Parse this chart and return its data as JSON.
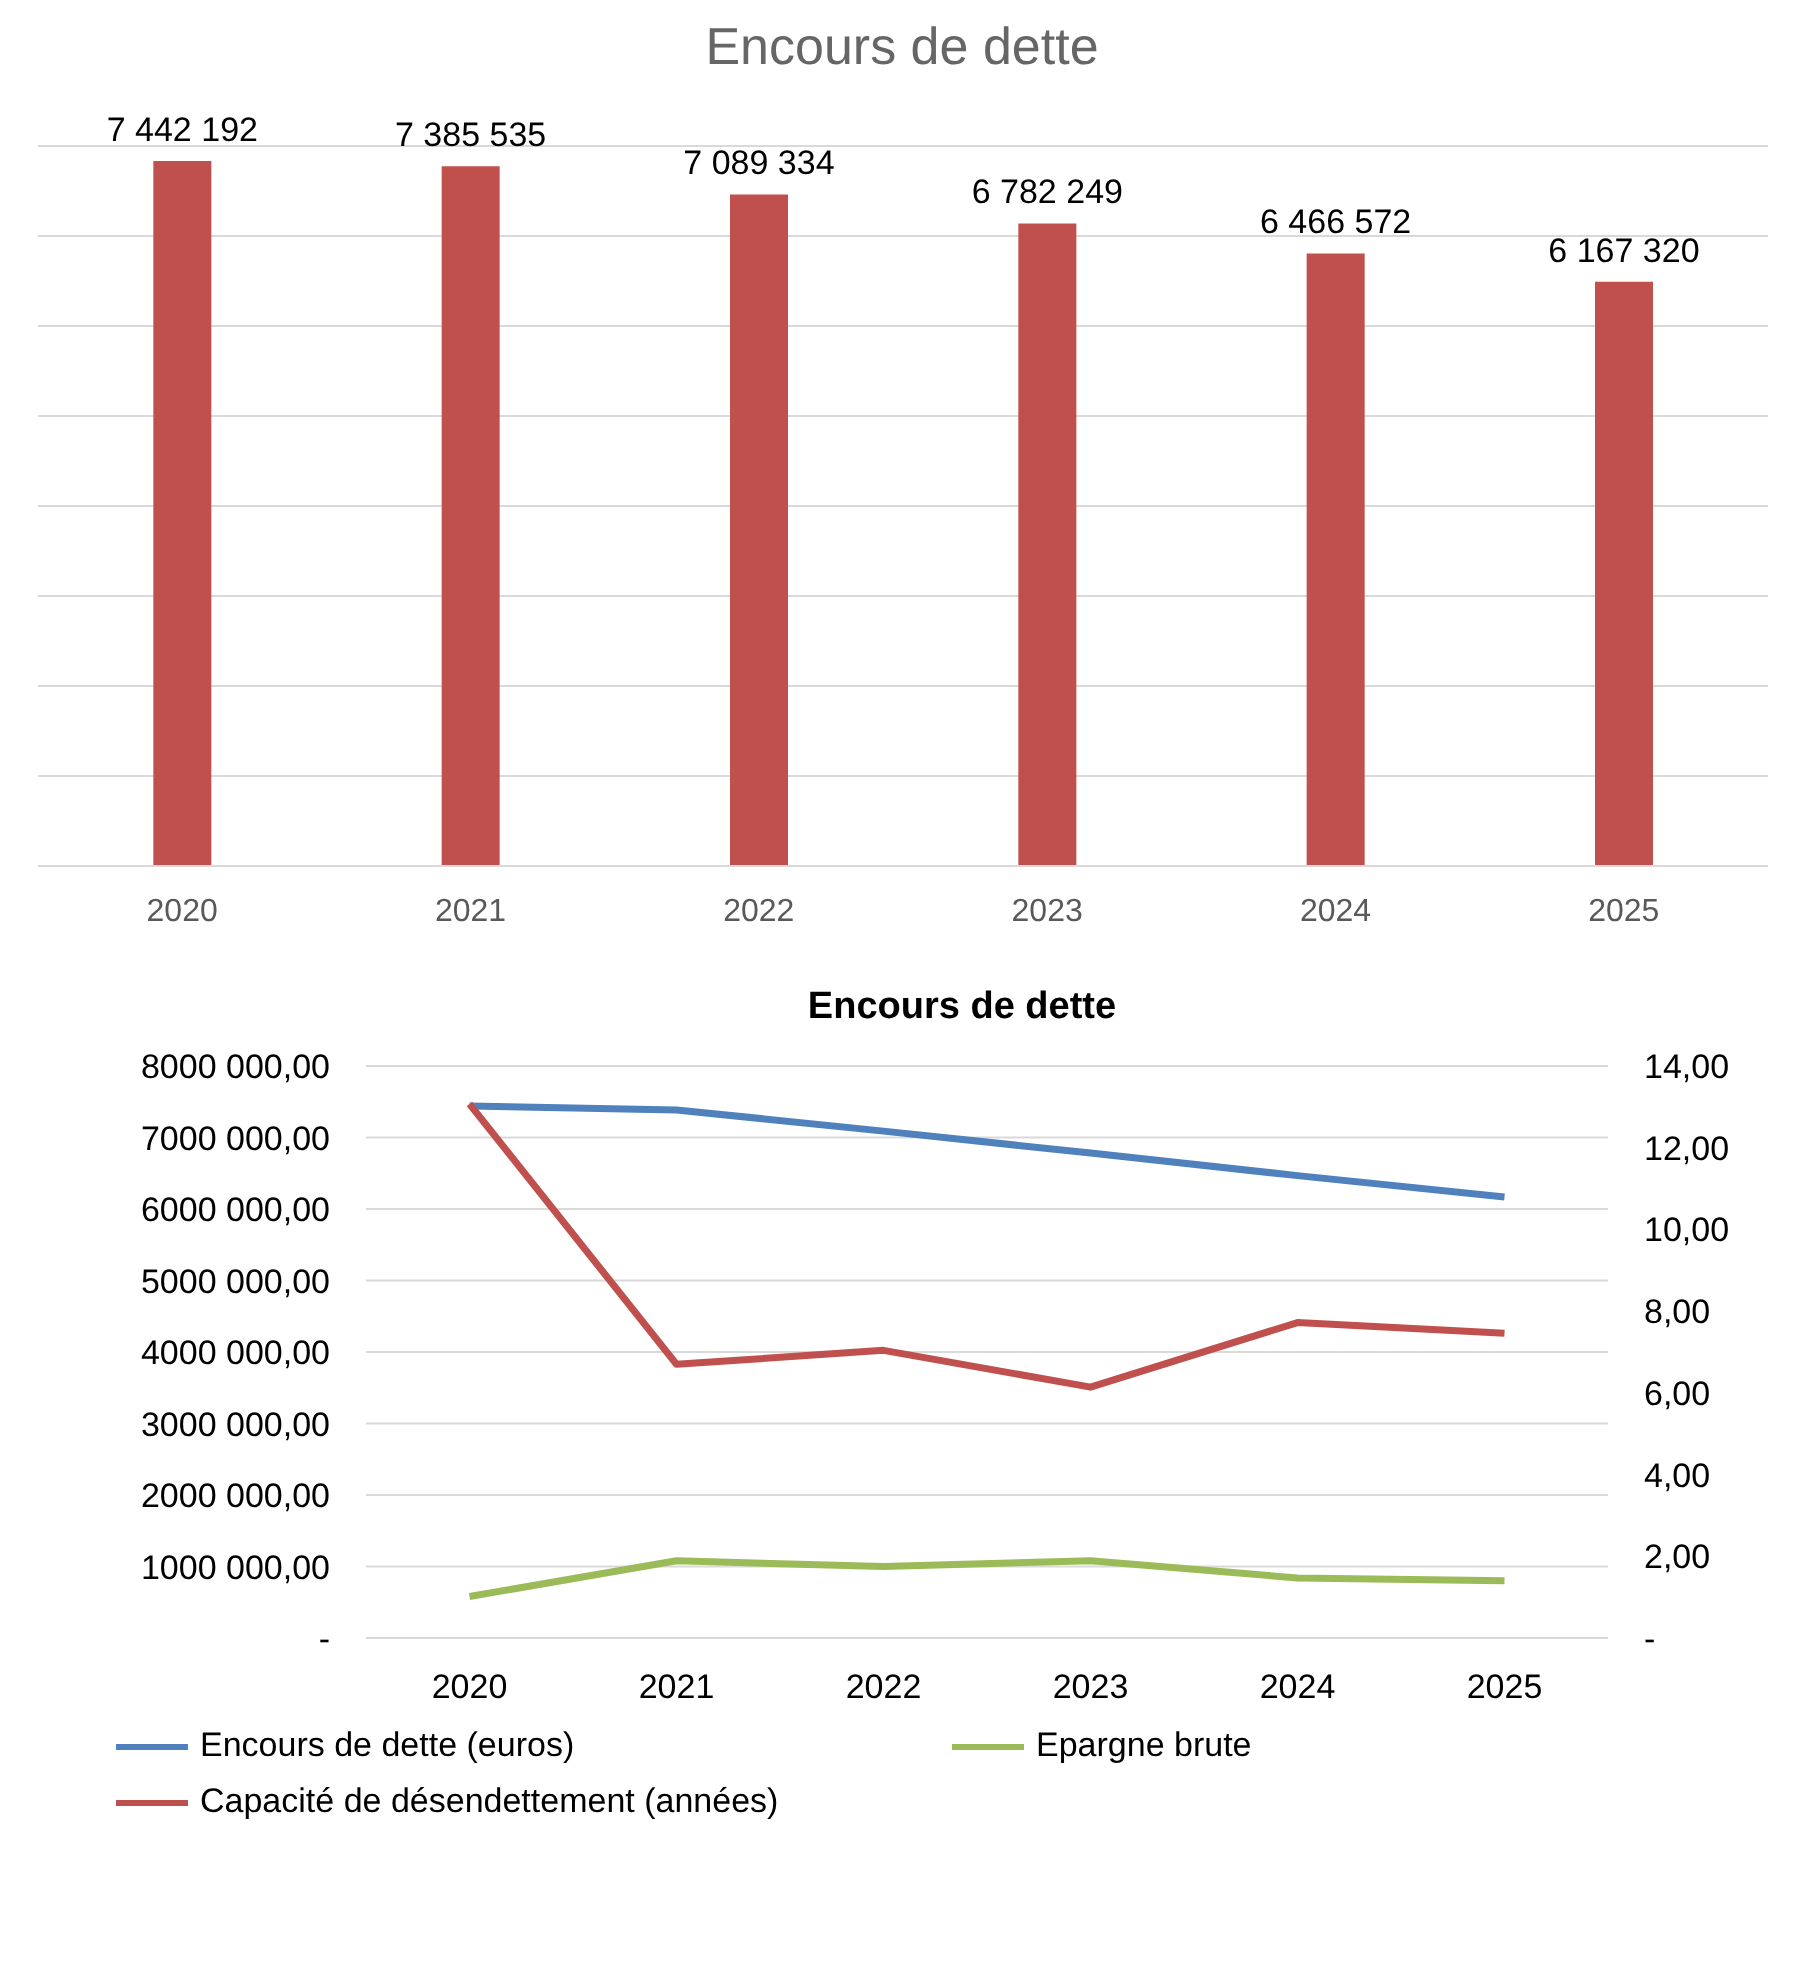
{
  "chart_data": [
    {
      "type": "bar",
      "title": "Encours de dette",
      "categories": [
        "2020",
        "2021",
        "2022",
        "2023",
        "2024",
        "2025"
      ],
      "values": [
        7442192,
        7385535,
        7089334,
        6782249,
        6466572,
        6167320
      ],
      "value_labels": [
        "7 442 192",
        "7 385 535",
        "7 089 334",
        "6 782 249",
        "6 466 572",
        "6 167 320"
      ],
      "color": "#c0504d",
      "tick_labels": "x",
      "grid": "y"
    },
    {
      "type": "line",
      "title": "Encours de dette",
      "categories": [
        "2020",
        "2021",
        "2022",
        "2023",
        "2024",
        "2025"
      ],
      "series": [
        {
          "name": "Encours de dette (euros)",
          "color": "#4f81bd",
          "values": [
            7442192,
            7385535,
            7089334,
            6782249,
            6466572,
            6167320
          ]
        },
        {
          "name": "Epargne brute",
          "color": "#9bbb59",
          "values": [
            580000,
            1080000,
            1000000,
            1080000,
            840000,
            800000
          ]
        },
        {
          "name": "Capacité de désendettement (années)",
          "color": "#c0504d",
          "axis": "y2",
          "values": [
            13.07,
            6.7,
            7.04,
            6.14,
            7.72,
            7.46
          ]
        }
      ],
      "ylim": [
        0,
        8000000
      ],
      "yticks": [
        {
          "value": 0,
          "label": "-"
        },
        {
          "value": 1000000,
          "label": "1000 000,00"
        },
        {
          "value": 2000000,
          "label": "2000 000,00"
        },
        {
          "value": 3000000,
          "label": "3000 000,00"
        },
        {
          "value": 4000000,
          "label": "4000 000,00"
        },
        {
          "value": 5000000,
          "label": "5000 000,00"
        },
        {
          "value": 6000000,
          "label": "6000 000,00"
        },
        {
          "value": 7000000,
          "label": "7000 000,00"
        },
        {
          "value": 8000000,
          "label": "8000 000,00"
        }
      ],
      "y2lim": [
        0,
        14
      ],
      "y2ticks": [
        {
          "value": 0,
          "label": "-"
        },
        {
          "value": 2,
          "label": "2,00"
        },
        {
          "value": 4,
          "label": "4,00"
        },
        {
          "value": 6,
          "label": "6,00"
        },
        {
          "value": 8,
          "label": "8,00"
        },
        {
          "value": 10,
          "label": "10,00"
        },
        {
          "value": 12,
          "label": "12,00"
        },
        {
          "value": 14,
          "label": "14,00"
        }
      ],
      "grid": "y",
      "legend": "bottom",
      "marker": "none",
      "line_style": "solid"
    }
  ]
}
